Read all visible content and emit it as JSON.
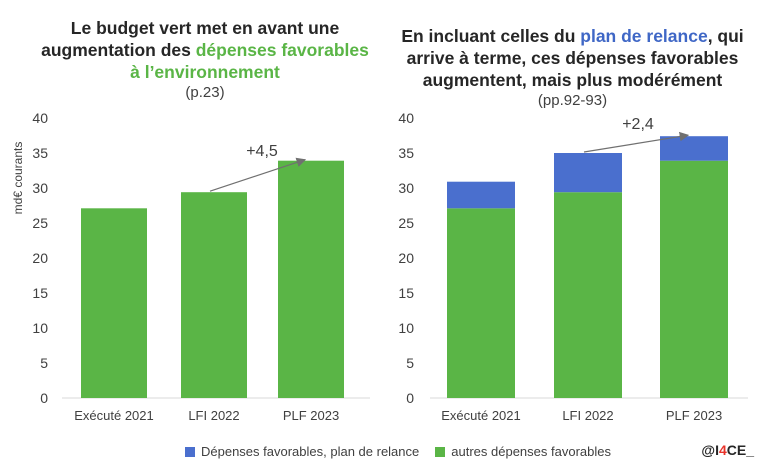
{
  "titles": {
    "left": {
      "line1": "Le budget vert met en avant une",
      "line2_pre": "augmentation des ",
      "line2_hl": "dépenses favorables",
      "line3_hl": "à l’environnement",
      "ref": "(p.23)"
    },
    "right": {
      "line1_pre": "En incluant celles du ",
      "line1_hl": "plan de relance",
      "line1_post": ", qui",
      "line2": "arrive à terme, ces dépenses favorables",
      "line3": "augmentent, mais plus modérément",
      "ref": "(pp.92-93)"
    }
  },
  "colors": {
    "green": "#5ab546",
    "blue": "#4a6fce",
    "arrow": "#707070"
  },
  "legend": {
    "blue_label": "Dépenses favorables, plan de relance",
    "green_label": "autres dépenses favorables"
  },
  "brand": {
    "pre": "@I",
    "four": "4",
    "post": "CE_"
  },
  "chart_data": [
    {
      "type": "bar",
      "categories": [
        "Exécuté 2021",
        "LFI 2022",
        "PLF 2023"
      ],
      "series": [
        {
          "name": "autres dépenses favorables",
          "values": [
            27.1,
            29.4,
            33.9
          ]
        }
      ],
      "ylabel": "md€ courants",
      "ylim": [
        0,
        40
      ],
      "yticks": [
        0,
        5,
        10,
        15,
        20,
        25,
        30,
        35,
        40
      ],
      "annotation": {
        "text": "+4,5",
        "from_category": 1,
        "to_category": 2
      }
    },
    {
      "type": "bar",
      "stacked": true,
      "categories": [
        "Exécuté 2021",
        "LFI 2022",
        "PLF 2023"
      ],
      "series": [
        {
          "name": "autres dépenses favorables",
          "values": [
            27.1,
            29.4,
            33.9
          ]
        },
        {
          "name": "Dépenses favorables, plan de relance",
          "values": [
            3.8,
            5.6,
            3.5
          ]
        }
      ],
      "ylim": [
        0,
        40
      ],
      "yticks": [
        0,
        5,
        10,
        15,
        20,
        25,
        30,
        35,
        40
      ],
      "annotation": {
        "text": "+2,4",
        "from_category": 1,
        "to_category": 2
      }
    }
  ]
}
